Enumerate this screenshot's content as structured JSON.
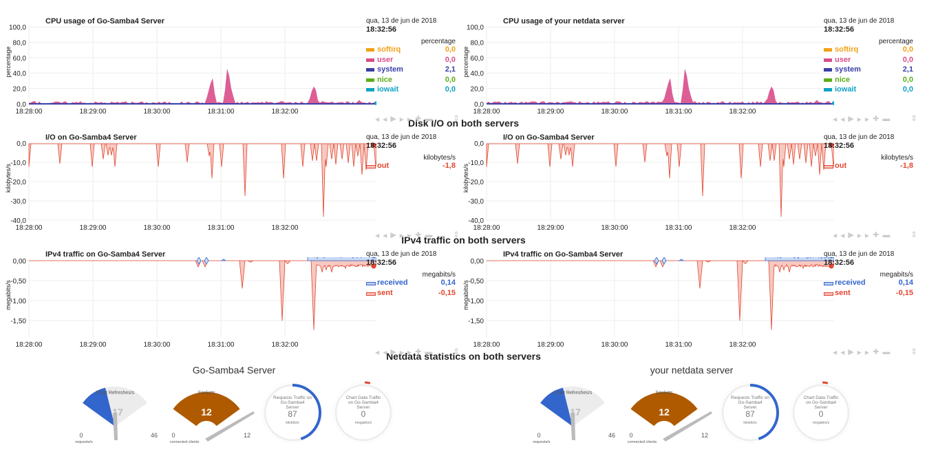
{
  "sections": {
    "disk": "Disk I/O on both servers",
    "ipv4": "IPv4 traffic on both servers",
    "netdata": "Netdata statistics on both servers"
  },
  "x_ticks": [
    "18:28:00",
    "18:29:00",
    "18:30:00",
    "18:31:00",
    "18:32:00"
  ],
  "legend_common": {
    "date": "qua, 13 de jun de 2018",
    "time": "18:32:56"
  },
  "charts": {
    "cpu_left": {
      "title": "CPU usage of Go-Samba4 Server",
      "units": "percentage",
      "y_ticks": [
        "100,0",
        "80,0",
        "60,0",
        "40,0",
        "20,0",
        "0,0"
      ],
      "dims": [
        {
          "name": "softirq",
          "value": "0,0",
          "color": "#f4a017"
        },
        {
          "name": "user",
          "value": "0,0",
          "color": "#d94d8a"
        },
        {
          "name": "system",
          "value": "2,1",
          "color": "#3a3fa8"
        },
        {
          "name": "nice",
          "value": "0,0",
          "color": "#5cad18"
        },
        {
          "name": "iowait",
          "value": "0,0",
          "color": "#10a3c4"
        }
      ]
    },
    "cpu_right": {
      "title": "CPU usage of your netdata server",
      "units": "percentage",
      "y_ticks": [
        "100,0",
        "80,0",
        "60,0",
        "40,0",
        "20,0",
        "0,0"
      ],
      "dims": [
        {
          "name": "softirq",
          "value": "0,0",
          "color": "#f4a017"
        },
        {
          "name": "user",
          "value": "0,0",
          "color": "#d94d8a"
        },
        {
          "name": "system",
          "value": "2,1",
          "color": "#3a3fa8"
        },
        {
          "name": "nice",
          "value": "0,0",
          "color": "#5cad18"
        },
        {
          "name": "iowait",
          "value": "0,0",
          "color": "#10a3c4"
        }
      ]
    },
    "io_left": {
      "title": "I/O on Go-Samba4 Server",
      "units": "kilobytes/s",
      "y_ticks": [
        "0,0",
        "-10,0",
        "-20,0",
        "-30,0",
        "-40,0"
      ],
      "dims": [
        {
          "name": "out",
          "value": "-1,8",
          "color": "#e2462f"
        }
      ]
    },
    "io_right": {
      "title": "I/O on Go-Samba4 Server",
      "units": "kilobytes/s",
      "y_ticks": [
        "0,0",
        "-10,0",
        "-20,0",
        "-30,0",
        "-40,0"
      ],
      "dims": [
        {
          "name": "out",
          "value": "-1,8",
          "color": "#e2462f"
        }
      ]
    },
    "net_left": {
      "title": "IPv4 traffic on Go-Samba4 Server",
      "units": "megabits/s",
      "y_ticks": [
        "0,00",
        "-0,50",
        "-1,00",
        "-1,50"
      ],
      "dims": [
        {
          "name": "received",
          "value": "0,14",
          "color": "#3366cc"
        },
        {
          "name": "sent",
          "value": "-0,15",
          "color": "#e2462f"
        }
      ]
    },
    "net_right": {
      "title": "IPv4 traffic on Go-Samba4 Server",
      "units": "megabits/s",
      "y_ticks": [
        "0,00",
        "-0,50",
        "-1,00",
        "-1,50"
      ],
      "dims": [
        {
          "name": "received",
          "value": "0,14",
          "color": "#3366cc"
        },
        {
          "name": "sent",
          "value": "-0,15",
          "color": "#e2462f"
        }
      ]
    }
  },
  "gauges": {
    "left_title": "Go-Samba4 Server",
    "right_title": "your netdata server",
    "refreshes": {
      "label": "Chart Refreshes/s",
      "value": "17",
      "min": "0",
      "max": "46",
      "units": "requests/s",
      "fraction": 0.37
    },
    "sockets": {
      "label": "Sockets",
      "value": "12",
      "min": "0",
      "max": "12",
      "units": "connected clients",
      "fraction": 1.0
    },
    "requests": {
      "label": "Requests Traffic on Go-Samba4 Server",
      "value": "87",
      "units": "kilobits/s",
      "fraction": 0.45
    },
    "chartdata": {
      "label": "Chart Data Traffic on Go-Samba4 Server",
      "value": "0",
      "units": "megabits/s",
      "fraction": 0.03
    }
  },
  "colors": {
    "gauge_blue": "#3366cc",
    "gauge_brown": "#b05a00",
    "gauge_gray": "#ececec"
  }
}
